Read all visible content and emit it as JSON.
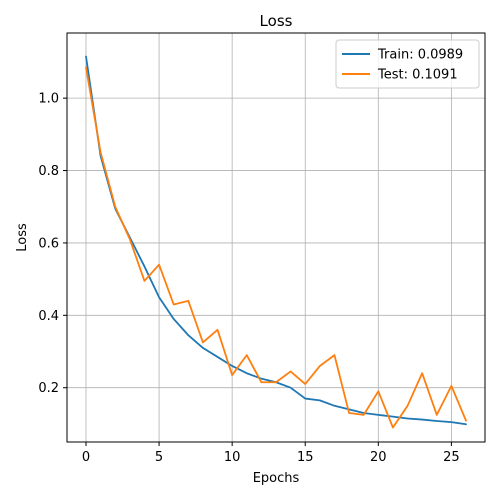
{
  "chart_data": {
    "type": "line",
    "title": "Loss",
    "xlabel": "Epochs",
    "ylabel": "Loss",
    "xlim": [
      -1.3,
      27.3
    ],
    "ylim": [
      0.05,
      1.18
    ],
    "xticks": [
      0,
      5,
      10,
      15,
      20,
      25
    ],
    "yticks": [
      0.2,
      0.4,
      0.6,
      0.8,
      1.0
    ],
    "xtick_labels": [
      "0",
      "5",
      "10",
      "15",
      "20",
      "25"
    ],
    "ytick_labels": [
      "0.2",
      "0.4",
      "0.6",
      "0.8",
      "1.0"
    ],
    "grid": true,
    "legend_position": "top-right",
    "x": [
      0,
      1,
      2,
      3,
      4,
      5,
      6,
      7,
      8,
      9,
      10,
      11,
      12,
      13,
      14,
      15,
      16,
      17,
      18,
      19,
      20,
      21,
      22,
      23,
      24,
      25,
      26
    ],
    "series": [
      {
        "name": "Train: 0.0989",
        "color": "#1f77b4",
        "values": [
          1.115,
          0.84,
          0.695,
          0.615,
          0.535,
          0.45,
          0.39,
          0.345,
          0.31,
          0.285,
          0.26,
          0.24,
          0.225,
          0.215,
          0.2,
          0.17,
          0.165,
          0.15,
          0.14,
          0.13,
          0.125,
          0.12,
          0.115,
          0.112,
          0.108,
          0.105,
          0.099
        ]
      },
      {
        "name": "Test: 0.1091",
        "color": "#ff7f0e",
        "values": [
          1.085,
          0.85,
          0.7,
          0.61,
          0.495,
          0.54,
          0.43,
          0.44,
          0.325,
          0.36,
          0.235,
          0.29,
          0.215,
          0.215,
          0.245,
          0.21,
          0.26,
          0.29,
          0.13,
          0.125,
          0.19,
          0.09,
          0.15,
          0.24,
          0.125,
          0.205,
          0.109
        ]
      }
    ]
  }
}
